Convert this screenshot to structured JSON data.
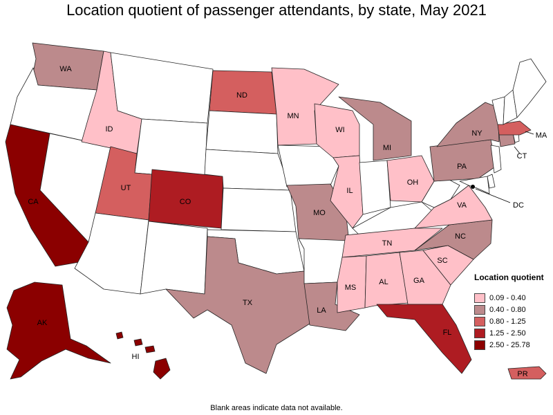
{
  "title": "Location quotient of passenger attendants, by state, May 2021",
  "footnote": "Blank areas indicate data not available.",
  "legend": {
    "title": "Location quotient",
    "items": [
      {
        "label": "0.09 - 0.40",
        "color": "#FFC0C8"
      },
      {
        "label": "0.40 - 0.80",
        "color": "#BC8A8C"
      },
      {
        "label": "0.80 - 1.25",
        "color": "#D45F5F"
      },
      {
        "label": "1.25 - 2.50",
        "color": "#AE1C22"
      },
      {
        "label": "2.50 - 25.78",
        "color": "#8B0000"
      }
    ]
  },
  "no_data_color": "#FFFFFF",
  "states": {
    "WA": {
      "label": "WA",
      "bin": 1
    },
    "OR": {
      "label": "",
      "bin": null
    },
    "CA": {
      "label": "CA",
      "bin": 4
    },
    "NV": {
      "label": "",
      "bin": null
    },
    "ID": {
      "label": "ID",
      "bin": 0
    },
    "MT": {
      "label": "",
      "bin": null
    },
    "WY": {
      "label": "",
      "bin": null
    },
    "UT": {
      "label": "UT",
      "bin": 2
    },
    "AZ": {
      "label": "",
      "bin": null
    },
    "CO": {
      "label": "CO",
      "bin": 3
    },
    "NM": {
      "label": "",
      "bin": null
    },
    "ND": {
      "label": "ND",
      "bin": 2
    },
    "SD": {
      "label": "",
      "bin": null
    },
    "NE": {
      "label": "",
      "bin": null
    },
    "KS": {
      "label": "",
      "bin": null
    },
    "OK": {
      "label": "",
      "bin": null
    },
    "TX": {
      "label": "TX",
      "bin": 1
    },
    "MN": {
      "label": "MN",
      "bin": 0
    },
    "IA": {
      "label": "",
      "bin": null
    },
    "MO": {
      "label": "MO",
      "bin": 1
    },
    "AR": {
      "label": "",
      "bin": null
    },
    "LA": {
      "label": "LA",
      "bin": 1
    },
    "WI": {
      "label": "WI",
      "bin": 0
    },
    "IL": {
      "label": "IL",
      "bin": 0
    },
    "MI": {
      "label": "MI",
      "bin": 1
    },
    "IN": {
      "label": "",
      "bin": null
    },
    "OH": {
      "label": "OH",
      "bin": 0
    },
    "KY": {
      "label": "",
      "bin": null
    },
    "TN": {
      "label": "TN",
      "bin": 0
    },
    "MS": {
      "label": "MS",
      "bin": 0
    },
    "AL": {
      "label": "AL",
      "bin": 0
    },
    "GA": {
      "label": "GA",
      "bin": 0
    },
    "FL": {
      "label": "FL",
      "bin": 3
    },
    "SC": {
      "label": "SC",
      "bin": 0
    },
    "NC": {
      "label": "NC",
      "bin": 1
    },
    "VA": {
      "label": "VA",
      "bin": 0
    },
    "WV": {
      "label": "",
      "bin": null
    },
    "PA": {
      "label": "PA",
      "bin": 1
    },
    "NY": {
      "label": "NY",
      "bin": 1
    },
    "NJ": {
      "label": "",
      "bin": null
    },
    "DE": {
      "label": "",
      "bin": null
    },
    "MD": {
      "label": "",
      "bin": null
    },
    "DC": {
      "label": "DC",
      "bin": null
    },
    "CT": {
      "label": "CT",
      "bin": 1
    },
    "RI": {
      "label": "",
      "bin": null
    },
    "MA": {
      "label": "MA",
      "bin": 2
    },
    "VT": {
      "label": "",
      "bin": null
    },
    "NH": {
      "label": "",
      "bin": null
    },
    "ME": {
      "label": "",
      "bin": null
    },
    "AK": {
      "label": "AK",
      "bin": 4
    },
    "HI": {
      "label": "HI",
      "bin": 4
    },
    "PR": {
      "label": "PR",
      "bin": 2
    }
  }
}
